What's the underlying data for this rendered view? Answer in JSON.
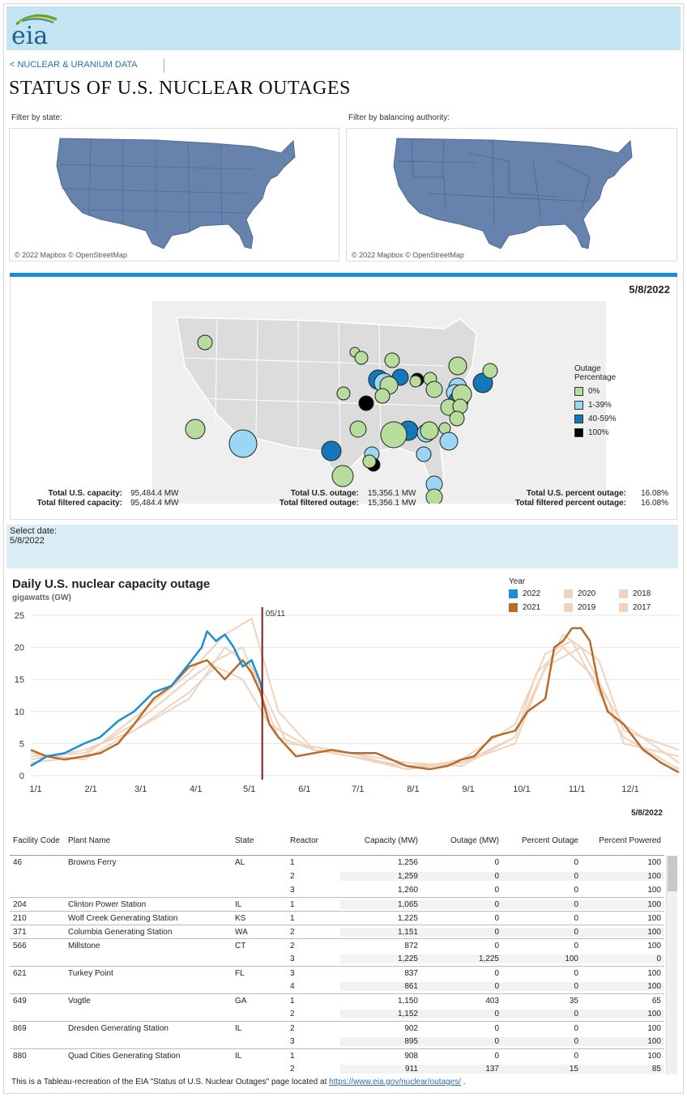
{
  "header": {
    "logo_text": "eia",
    "back_link": "< NUCLEAR & URANIUM DATA",
    "title": "STATUS OF U.S. NUCLEAR OUTAGES"
  },
  "filters": {
    "state_label": "Filter by state:",
    "ba_label": "Filter by balancing authority:",
    "map_credit": "© 2022 Mapbox © OpenStreetMap",
    "map_color": "#6783ad"
  },
  "outage_map": {
    "date": "5/8/2022",
    "legend_title_1": "Outage",
    "legend_title_2": "Percentage",
    "legend": [
      {
        "label": "0%",
        "color": "#b8dc9b"
      },
      {
        "label": "1-39%",
        "color": "#9bd7f5"
      },
      {
        "label": "40-59%",
        "color": "#1478b8"
      },
      {
        "label": "100%",
        "color": "#000000"
      }
    ],
    "stats": {
      "total_capacity_label": "Total U.S. capacity:",
      "total_capacity": "95,484.4 MW",
      "filtered_capacity_label": "Total filtered capacity:",
      "filtered_capacity": "95,484.4 MW",
      "total_outage_label": "Total U.S. outage:",
      "total_outage": "15,356.1 MW",
      "filtered_outage_label": "Total filtered outage:",
      "filtered_outage": "15,356.1 MW",
      "pct_label": "Total U.S. percent outage:",
      "pct": "16.08%",
      "filtered_pct_label": "Total filtered percent outage:",
      "filtered_pct": "16.08%"
    }
  },
  "select_date": {
    "label": "Select date:",
    "value": "5/8/2022"
  },
  "chart_data": {
    "type": "line",
    "title": "Daily U.S. nuclear capacity outage",
    "ylabel": "gigawatts (GW)",
    "ylim": [
      0,
      25
    ],
    "yticks": [
      "0",
      "5",
      "10",
      "15",
      "20",
      "25"
    ],
    "x_ticks": [
      "1/1",
      "2/1",
      "3/1",
      "4/1",
      "5/1",
      "6/1",
      "7/1",
      "8/1",
      "9/1",
      "10/1",
      "11/1",
      "12/1"
    ],
    "marker_label": "05/11",
    "legend_title": "Year",
    "series": [
      {
        "name": "2022",
        "color": "#1a8fd6",
        "x": [
          1,
          10,
          20,
          31,
          40,
          50,
          59,
          70,
          80,
          90,
          97,
          100,
          105,
          110,
          115,
          120,
          125,
          130,
          131
        ],
        "y": [
          1.5,
          3.0,
          3.5,
          5.0,
          6.0,
          8.5,
          10.0,
          13.0,
          14.0,
          17.5,
          20.0,
          22.5,
          21.0,
          22.0,
          20.0,
          17.0,
          18.0,
          14.5,
          13.0
        ]
      },
      {
        "name": "2021",
        "color": "#b86b2b",
        "x": [
          1,
          10,
          20,
          31,
          40,
          50,
          59,
          70,
          80,
          90,
          100,
          110,
          120,
          125,
          130,
          135,
          140,
          150,
          160,
          170,
          181,
          195,
          212,
          225,
          235,
          243,
          250,
          260,
          273,
          280,
          290,
          295,
          300,
          305,
          310,
          315,
          320,
          325,
          334,
          345,
          355,
          365
        ],
        "y": [
          4.0,
          3.0,
          2.5,
          3.0,
          3.5,
          5.0,
          8.0,
          12.0,
          14.0,
          17.0,
          18.0,
          15.0,
          18.0,
          16.0,
          13.0,
          8.0,
          6.0,
          3.0,
          3.5,
          4.0,
          3.5,
          3.5,
          1.5,
          1.0,
          1.5,
          2.5,
          3.0,
          6.0,
          7.0,
          10.0,
          12.0,
          20.0,
          21.0,
          23.0,
          23.0,
          21.0,
          14.0,
          10.0,
          8.0,
          4.0,
          2.0,
          0.5
        ]
      },
      {
        "name": "2020",
        "color": "#f0d3bd",
        "x": [
          1,
          31,
          59,
          90,
          105,
          120,
          140,
          160,
          181,
          212,
          243,
          273,
          290,
          305,
          320,
          334,
          365
        ],
        "y": [
          3.0,
          3.5,
          8.0,
          15.0,
          18.0,
          20.0,
          6.0,
          4.0,
          3.5,
          1.0,
          2.5,
          8.0,
          19.0,
          21.0,
          13.0,
          6.0,
          1.0
        ]
      },
      {
        "name": "2019",
        "color": "#f0d3bd",
        "x": [
          1,
          31,
          59,
          90,
          110,
          125,
          140,
          160,
          181,
          212,
          243,
          273,
          285,
          300,
          315,
          334,
          365
        ],
        "y": [
          2.0,
          3.0,
          9.0,
          16.0,
          22.0,
          24.5,
          10.0,
          4.0,
          3.0,
          1.0,
          2.0,
          6.0,
          16.0,
          20.0,
          16.0,
          8.0,
          2.0
        ]
      },
      {
        "name": "2018",
        "color": "#f0d3bd",
        "x": [
          1,
          31,
          59,
          90,
          105,
          120,
          135,
          160,
          181,
          212,
          243,
          273,
          290,
          310,
          325,
          334,
          365
        ],
        "y": [
          3.5,
          2.5,
          7.0,
          13.0,
          17.0,
          15.0,
          8.0,
          4.0,
          3.0,
          1.5,
          2.0,
          5.0,
          17.0,
          20.0,
          12.0,
          5.0,
          3.0
        ]
      },
      {
        "name": "2017",
        "color": "#f0d3bd",
        "x": [
          1,
          31,
          59,
          90,
          110,
          125,
          145,
          160,
          181,
          212,
          243,
          273,
          285,
          300,
          320,
          334,
          365
        ],
        "y": [
          2.5,
          4.0,
          7.0,
          12.0,
          20.0,
          17.0,
          5.0,
          4.5,
          3.5,
          2.0,
          1.5,
          6.0,
          14.0,
          22.0,
          18.0,
          7.0,
          4.0
        ]
      }
    ],
    "marker_x": 131
  },
  "table": {
    "date": "5/8/2022",
    "headers": [
      "Facility Code",
      "Plant Name",
      "State",
      "Reactor",
      "Capacity (MW)",
      "Outage (MW)",
      "Percent Outage",
      "Percent Powered"
    ],
    "rows": [
      [
        "46",
        "Browns Ferry",
        "AL",
        "1",
        "1,256",
        "0",
        "0",
        "100"
      ],
      [
        "",
        "",
        "",
        "2",
        "1,259",
        "0",
        "0",
        "100"
      ],
      [
        "",
        "",
        "",
        "3",
        "1,260",
        "0",
        "0",
        "100"
      ],
      [
        "204",
        "Clinton Power Station",
        "IL",
        "1",
        "1,065",
        "0",
        "0",
        "100"
      ],
      [
        "210",
        "Wolf Creek Generating Station",
        "KS",
        "1",
        "1,225",
        "0",
        "0",
        "100"
      ],
      [
        "371",
        "Columbia Generating Station",
        "WA",
        "2",
        "1,151",
        "0",
        "0",
        "100"
      ],
      [
        "566",
        "Millstone",
        "CT",
        "2",
        "872",
        "0",
        "0",
        "100"
      ],
      [
        "",
        "",
        "",
        "3",
        "1,225",
        "1,225",
        "100",
        "0"
      ],
      [
        "621",
        "Turkey Point",
        "FL",
        "3",
        "837",
        "0",
        "0",
        "100"
      ],
      [
        "",
        "",
        "",
        "4",
        "861",
        "0",
        "0",
        "100"
      ],
      [
        "649",
        "Vogtle",
        "GA",
        "1",
        "1,150",
        "403",
        "35",
        "65"
      ],
      [
        "",
        "",
        "",
        "2",
        "1,152",
        "0",
        "0",
        "100"
      ],
      [
        "869",
        "Dresden Generating Station",
        "IL",
        "2",
        "902",
        "0",
        "0",
        "100"
      ],
      [
        "",
        "",
        "",
        "3",
        "895",
        "0",
        "0",
        "100"
      ],
      [
        "880",
        "Quad Cities Generating Station",
        "IL",
        "1",
        "908",
        "0",
        "0",
        "100"
      ],
      [
        "",
        "",
        "",
        "2",
        "911",
        "137",
        "15",
        "85"
      ]
    ]
  },
  "footer": {
    "text_before": "This is a Tableau-recreation of the EIA \"Status of U.S. Nuclear Outages\" page located at ",
    "link": "https://www.eia.gov/nuclear/outages/",
    "text_after": " ."
  }
}
